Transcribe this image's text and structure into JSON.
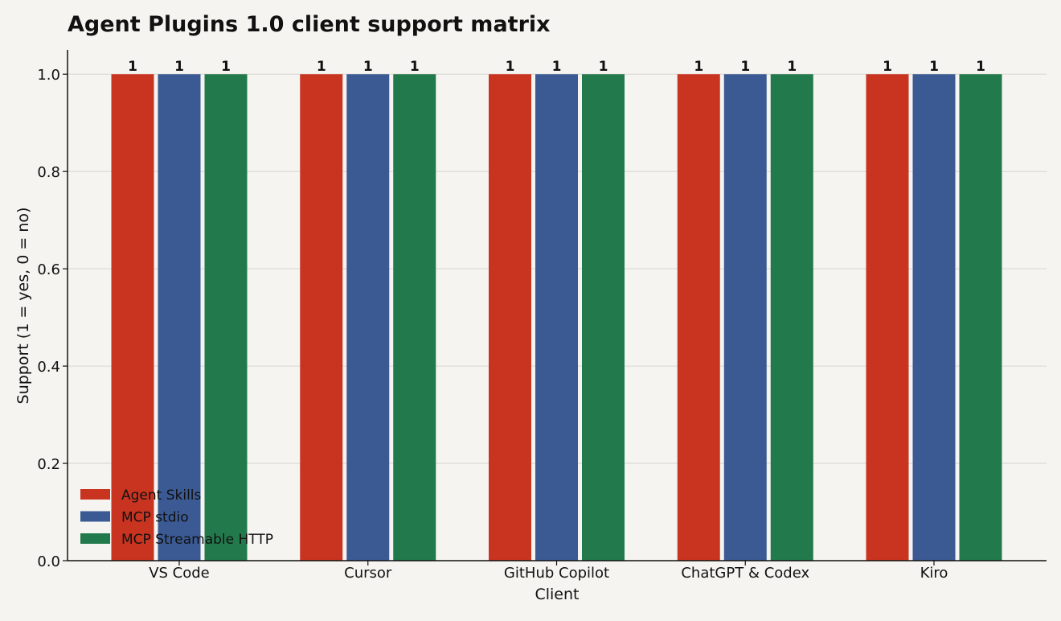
{
  "chart_data": {
    "type": "bar",
    "title": "Agent Plugins 1.0 client support matrix",
    "xlabel": "Client",
    "ylabel": "Support (1 = yes, 0 = no)",
    "categories": [
      "VS Code",
      "Cursor",
      "GitHub Copilot",
      "ChatGPT & Codex",
      "Kiro"
    ],
    "series": [
      {
        "name": "Agent Skills",
        "values": [
          1,
          1,
          1,
          1,
          1
        ],
        "color": "#c93421"
      },
      {
        "name": "MCP stdio",
        "values": [
          1,
          1,
          1,
          1,
          1
        ],
        "color": "#3b5a94"
      },
      {
        "name": "MCP Streamable HTTP",
        "values": [
          1,
          1,
          1,
          1,
          1
        ],
        "color": "#227a4c"
      }
    ],
    "ylim": [
      0,
      1.05
    ],
    "yticks": [
      "0.0",
      "0.2",
      "0.4",
      "0.6",
      "0.8",
      "1.0"
    ],
    "data_labels": true,
    "grid": "horizontal",
    "legend_position": "lower-left",
    "colors": {
      "background": "#f5f4f0",
      "grid": "#dddcd7",
      "axis": "#111111",
      "text": "#111111"
    }
  }
}
